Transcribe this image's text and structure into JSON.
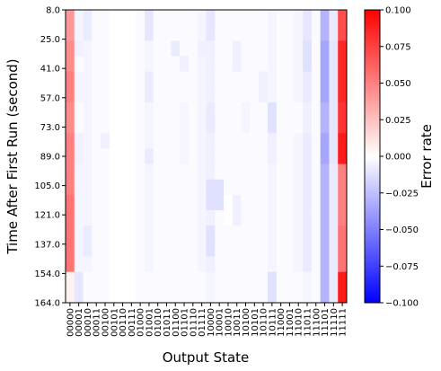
{
  "chart_data": {
    "type": "heatmap",
    "xlabel": "Output State",
    "ylabel": "Time After First Run (second)",
    "colorbar_label": "Error rate",
    "colormap": "bwr",
    "vmin": -0.1,
    "vmax": 0.1,
    "colors": {
      "min": "#0000ff",
      "mid": "#ffffff",
      "max": "#ff0000"
    },
    "x_categories": [
      "00000",
      "00001",
      "00010",
      "00011",
      "00100",
      "00101",
      "00110",
      "00111",
      "01000",
      "01001",
      "01010",
      "01011",
      "01100",
      "01101",
      "01110",
      "01111",
      "10000",
      "10001",
      "10010",
      "10011",
      "10100",
      "10101",
      "10110",
      "10111",
      "11000",
      "11001",
      "11010",
      "11011",
      "11100",
      "11101",
      "11110",
      "11111"
    ],
    "y_tick_labels": [
      "8.0",
      "25.0",
      "41.0",
      "57.0",
      "73.0",
      "89.0",
      "105.0",
      "121.0",
      "137.0",
      "154.0",
      "164.0"
    ],
    "colorbar_ticks": [
      "0.100",
      "0.075",
      "0.050",
      "0.025",
      "0.000",
      "−0.025",
      "−0.050",
      "−0.075",
      "−0.100"
    ],
    "colorbar_tick_values": [
      0.1,
      0.075,
      0.05,
      0.025,
      0,
      -0.025,
      -0.05,
      -0.075,
      -0.1
    ],
    "grid_rows": 19,
    "values": [
      [
        0.04,
        -0.004,
        -0.008,
        -0.002,
        -0.002,
        0.0,
        0.0,
        0.0,
        -0.002,
        -0.01,
        -0.002,
        -0.002,
        -0.002,
        -0.002,
        -0.002,
        -0.004,
        -0.01,
        -0.002,
        -0.002,
        -0.002,
        -0.002,
        -0.002,
        -0.002,
        -0.004,
        -0.002,
        -0.002,
        -0.004,
        -0.01,
        -0.002,
        -0.03,
        -0.008,
        0.07
      ],
      [
        0.04,
        -0.004,
        -0.008,
        -0.002,
        -0.002,
        0.0,
        0.0,
        0.0,
        -0.002,
        -0.01,
        -0.002,
        -0.002,
        -0.002,
        -0.002,
        -0.002,
        -0.004,
        -0.01,
        -0.002,
        -0.002,
        -0.002,
        -0.002,
        -0.002,
        -0.002,
        -0.004,
        -0.002,
        -0.002,
        -0.004,
        -0.01,
        -0.002,
        -0.03,
        -0.008,
        0.07
      ],
      [
        0.045,
        -0.006,
        -0.004,
        -0.002,
        -0.002,
        0.0,
        0.0,
        0.0,
        -0.002,
        -0.004,
        -0.002,
        -0.002,
        -0.008,
        -0.002,
        -0.002,
        -0.006,
        -0.006,
        -0.002,
        -0.002,
        -0.006,
        -0.002,
        -0.002,
        -0.002,
        -0.004,
        -0.002,
        -0.002,
        -0.004,
        -0.012,
        -0.002,
        -0.035,
        -0.01,
        0.085
      ],
      [
        0.045,
        -0.002,
        -0.004,
        -0.002,
        -0.002,
        0.0,
        0.0,
        0.0,
        -0.002,
        -0.004,
        -0.002,
        -0.002,
        -0.002,
        -0.006,
        -0.002,
        -0.004,
        -0.006,
        -0.002,
        -0.002,
        -0.006,
        -0.002,
        -0.002,
        -0.002,
        -0.004,
        -0.002,
        -0.002,
        -0.004,
        -0.012,
        -0.002,
        -0.035,
        -0.01,
        0.085
      ],
      [
        0.05,
        -0.004,
        -0.004,
        -0.002,
        -0.002,
        0.0,
        0.0,
        0.0,
        -0.002,
        -0.008,
        -0.002,
        -0.002,
        -0.002,
        -0.002,
        -0.002,
        -0.004,
        -0.006,
        -0.002,
        -0.002,
        -0.002,
        -0.002,
        -0.002,
        -0.006,
        -0.004,
        -0.002,
        -0.002,
        -0.004,
        -0.008,
        -0.002,
        -0.035,
        -0.01,
        0.085
      ],
      [
        0.05,
        -0.004,
        -0.004,
        -0.002,
        -0.002,
        0.0,
        0.0,
        0.0,
        -0.002,
        -0.008,
        -0.002,
        -0.002,
        -0.002,
        -0.002,
        -0.002,
        -0.004,
        -0.006,
        -0.002,
        -0.002,
        -0.002,
        -0.002,
        -0.002,
        -0.006,
        -0.004,
        -0.002,
        -0.002,
        -0.004,
        -0.008,
        -0.002,
        -0.035,
        -0.01,
        0.085
      ],
      [
        0.045,
        -0.002,
        -0.004,
        -0.002,
        -0.002,
        0.0,
        0.0,
        0.0,
        -0.002,
        -0.004,
        -0.002,
        -0.002,
        -0.002,
        -0.004,
        -0.002,
        -0.004,
        -0.008,
        -0.002,
        -0.002,
        -0.002,
        -0.004,
        -0.002,
        -0.002,
        -0.012,
        -0.002,
        -0.002,
        -0.002,
        -0.006,
        -0.002,
        -0.03,
        -0.01,
        0.08
      ],
      [
        0.045,
        -0.002,
        -0.004,
        -0.002,
        -0.002,
        0.0,
        0.0,
        0.0,
        -0.002,
        -0.004,
        -0.002,
        -0.002,
        -0.002,
        -0.004,
        -0.002,
        -0.004,
        -0.008,
        -0.002,
        -0.002,
        -0.002,
        -0.004,
        -0.002,
        -0.002,
        -0.012,
        -0.002,
        -0.002,
        -0.002,
        -0.006,
        -0.002,
        -0.03,
        -0.01,
        0.08
      ],
      [
        0.05,
        -0.006,
        -0.004,
        -0.002,
        -0.006,
        0.0,
        0.0,
        0.0,
        -0.002,
        -0.004,
        -0.002,
        -0.002,
        -0.002,
        -0.004,
        -0.002,
        -0.004,
        -0.006,
        -0.002,
        -0.002,
        -0.002,
        -0.002,
        -0.002,
        -0.002,
        -0.006,
        -0.002,
        -0.002,
        -0.004,
        -0.008,
        -0.002,
        -0.035,
        -0.01,
        0.09
      ],
      [
        0.05,
        -0.006,
        -0.004,
        -0.002,
        -0.002,
        0.0,
        0.0,
        0.0,
        -0.002,
        -0.008,
        -0.002,
        -0.002,
        -0.002,
        -0.004,
        -0.002,
        -0.004,
        -0.006,
        -0.002,
        -0.002,
        -0.002,
        -0.002,
        -0.002,
        -0.002,
        -0.006,
        -0.002,
        -0.002,
        -0.004,
        -0.008,
        -0.002,
        -0.035,
        -0.01,
        0.09
      ],
      [
        0.05,
        -0.004,
        -0.004,
        -0.002,
        -0.002,
        0.0,
        0.0,
        0.0,
        -0.002,
        -0.004,
        -0.002,
        -0.002,
        -0.002,
        -0.002,
        -0.002,
        -0.004,
        -0.006,
        -0.002,
        -0.002,
        -0.002,
        -0.002,
        -0.002,
        -0.002,
        -0.004,
        -0.002,
        -0.002,
        -0.004,
        -0.008,
        -0.002,
        -0.03,
        -0.008,
        0.05
      ],
      [
        0.05,
        -0.004,
        -0.004,
        -0.002,
        -0.002,
        0.0,
        0.0,
        0.0,
        -0.002,
        -0.004,
        -0.002,
        -0.002,
        -0.002,
        -0.002,
        -0.002,
        -0.004,
        -0.012,
        -0.012,
        -0.002,
        -0.002,
        -0.002,
        -0.002,
        -0.002,
        -0.004,
        -0.002,
        -0.002,
        -0.004,
        -0.008,
        -0.002,
        -0.03,
        -0.008,
        0.05
      ],
      [
        0.055,
        -0.004,
        -0.004,
        -0.002,
        -0.002,
        0.0,
        0.0,
        0.0,
        -0.002,
        -0.004,
        -0.002,
        -0.002,
        -0.002,
        -0.002,
        -0.002,
        -0.004,
        -0.012,
        -0.012,
        0.0,
        -0.006,
        -0.002,
        -0.002,
        -0.002,
        -0.004,
        -0.002,
        -0.002,
        -0.004,
        -0.008,
        -0.002,
        -0.03,
        -0.008,
        0.05
      ],
      [
        0.055,
        -0.004,
        -0.004,
        -0.002,
        -0.002,
        0.0,
        0.0,
        0.0,
        -0.002,
        -0.004,
        -0.002,
        -0.002,
        -0.002,
        -0.002,
        -0.002,
        -0.004,
        -0.006,
        -0.002,
        0.0,
        -0.006,
        -0.002,
        -0.002,
        -0.002,
        -0.004,
        -0.002,
        -0.002,
        -0.004,
        -0.008,
        -0.002,
        -0.03,
        -0.008,
        0.05
      ],
      [
        0.055,
        -0.004,
        -0.008,
        -0.002,
        -0.002,
        0.0,
        0.0,
        0.0,
        -0.002,
        -0.004,
        -0.002,
        -0.002,
        -0.002,
        -0.002,
        -0.002,
        -0.004,
        -0.012,
        -0.002,
        -0.002,
        -0.002,
        -0.002,
        -0.002,
        -0.002,
        -0.004,
        -0.002,
        -0.002,
        -0.004,
        -0.008,
        -0.002,
        -0.03,
        -0.008,
        0.055
      ],
      [
        0.055,
        -0.004,
        -0.008,
        -0.002,
        -0.002,
        0.0,
        0.0,
        0.0,
        -0.002,
        -0.004,
        -0.002,
        -0.002,
        -0.002,
        -0.002,
        -0.002,
        -0.004,
        -0.012,
        -0.002,
        -0.002,
        -0.002,
        -0.002,
        -0.002,
        -0.002,
        -0.004,
        -0.002,
        -0.002,
        -0.004,
        -0.008,
        -0.002,
        -0.03,
        -0.008,
        0.055
      ],
      [
        0.055,
        -0.004,
        -0.004,
        -0.002,
        -0.002,
        0.0,
        0.0,
        0.0,
        -0.002,
        -0.004,
        -0.002,
        -0.002,
        -0.002,
        -0.002,
        -0.002,
        -0.004,
        -0.006,
        -0.002,
        -0.002,
        -0.002,
        -0.002,
        -0.002,
        -0.002,
        -0.004,
        -0.002,
        -0.002,
        -0.004,
        -0.008,
        -0.002,
        -0.03,
        -0.008,
        0.055
      ],
      [
        0.005,
        -0.01,
        -0.002,
        -0.002,
        -0.002,
        0.0,
        0.0,
        0.0,
        -0.002,
        -0.002,
        -0.002,
        -0.002,
        -0.002,
        -0.002,
        -0.002,
        -0.002,
        -0.004,
        -0.002,
        -0.002,
        -0.002,
        -0.002,
        -0.002,
        -0.002,
        -0.012,
        -0.002,
        -0.002,
        -0.002,
        -0.004,
        -0.002,
        -0.03,
        -0.008,
        0.09
      ],
      [
        0.005,
        -0.01,
        -0.002,
        -0.002,
        -0.002,
        0.0,
        0.0,
        0.0,
        -0.002,
        -0.002,
        -0.002,
        -0.002,
        -0.002,
        -0.002,
        -0.002,
        -0.002,
        -0.004,
        -0.002,
        -0.002,
        -0.002,
        -0.002,
        -0.002,
        -0.002,
        -0.012,
        -0.002,
        -0.002,
        -0.002,
        -0.004,
        -0.002,
        -0.03,
        -0.008,
        0.09
      ]
    ]
  }
}
